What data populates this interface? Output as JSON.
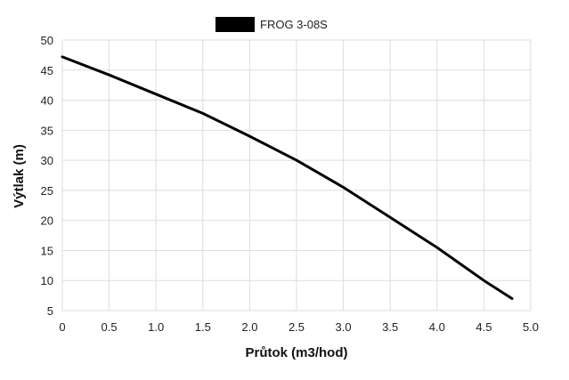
{
  "chart_data": {
    "type": "line",
    "xlabel": "Průtok (m3/hod)",
    "ylabel": "Výtlak (m)",
    "xlim": [
      0,
      5.0
    ],
    "ylim": [
      5,
      50
    ],
    "x_ticks": [
      "0",
      "0.5",
      "1.0",
      "1.5",
      "2.0",
      "2.5",
      "3.0",
      "3.5",
      "4.0",
      "4.5",
      "5.0"
    ],
    "y_ticks": [
      "5",
      "10",
      "15",
      "20",
      "25",
      "30",
      "35",
      "40",
      "45",
      "50"
    ],
    "grid": true,
    "legend_position": "top-center",
    "series": [
      {
        "name": "FROG 3-08S",
        "color": "#000000",
        "x": [
          0,
          0.5,
          1.0,
          1.5,
          2.0,
          2.5,
          3.0,
          3.5,
          4.0,
          4.5,
          4.8
        ],
        "y": [
          47.2,
          44.2,
          41.0,
          37.8,
          34.0,
          30.0,
          25.5,
          20.5,
          15.5,
          10.0,
          7.0
        ]
      }
    ]
  }
}
